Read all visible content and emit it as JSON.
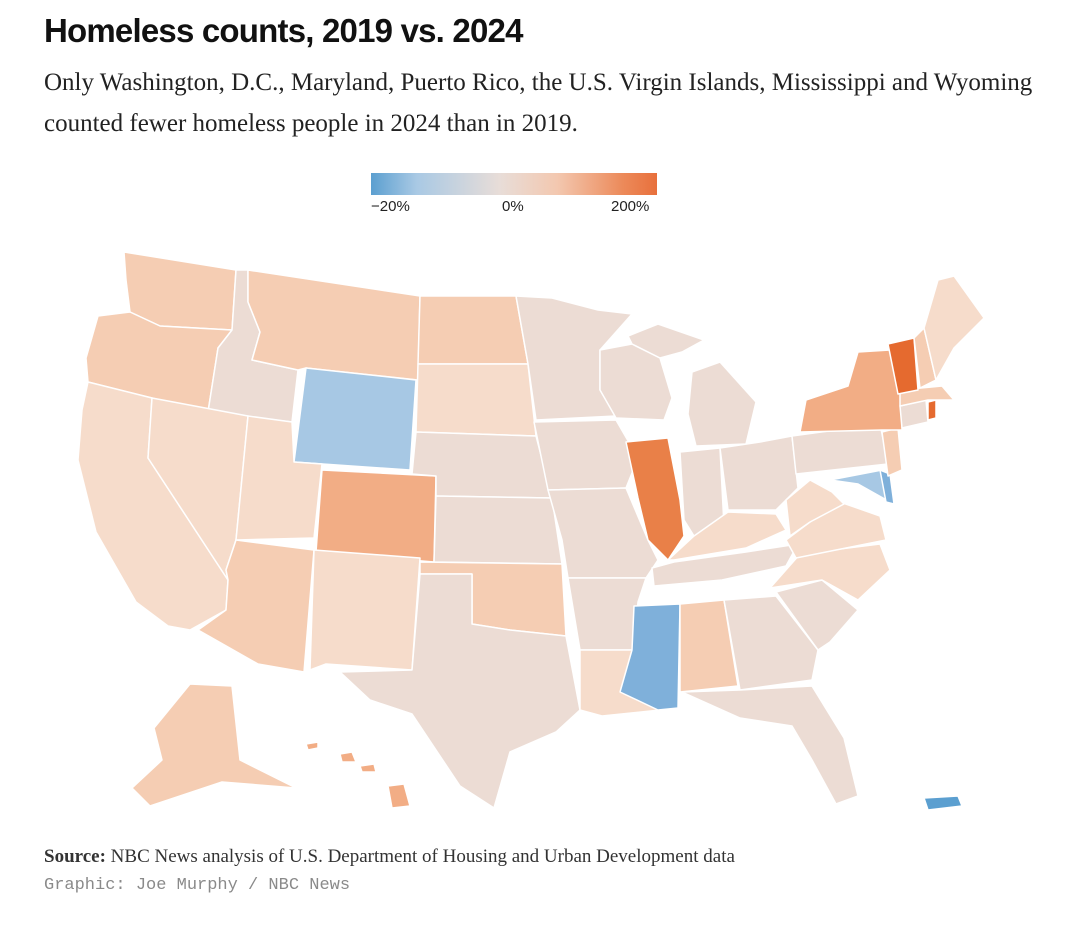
{
  "title": "Homeless counts, 2019 vs. 2024",
  "subtitle": "Only Washington, D.C., Maryland, Puerto Rico, the U.S. Virgin Islands, Mississippi and Wyoming counted fewer homeless people in 2024 than in 2019.",
  "legend": {
    "min_label": "−20%",
    "mid_label": "0%",
    "max_label": "200%",
    "colors": [
      "#5b9fd0",
      "#e8ddd8",
      "#e8703c"
    ]
  },
  "map": {
    "fill_classes": {
      "declined_strong": "#5b9fd0",
      "declined": "#7fb0da",
      "declined_light": "#a7c8e4",
      "flat": "#ecdcd4",
      "slight_increase": "#f6dccb",
      "moderate_increase": "#f5cdb3",
      "increase": "#f2ad85",
      "large_increase": "#e98048",
      "very_large_increase": "#e56a2f"
    },
    "highlighted_states": {
      "declined": [
        "Washington, D.C.",
        "Maryland",
        "Puerto Rico",
        "U.S. Virgin Islands",
        "Mississippi",
        "Wyoming"
      ],
      "largest_increase": [
        "Vermont",
        "Illinois",
        "Rhode Island"
      ]
    }
  },
  "footer": {
    "source_label": "Source:",
    "source_text": " NBC News analysis of U.S. Department of Housing and Urban Development data",
    "credit": "Graphic: Joe Murphy / NBC News"
  }
}
